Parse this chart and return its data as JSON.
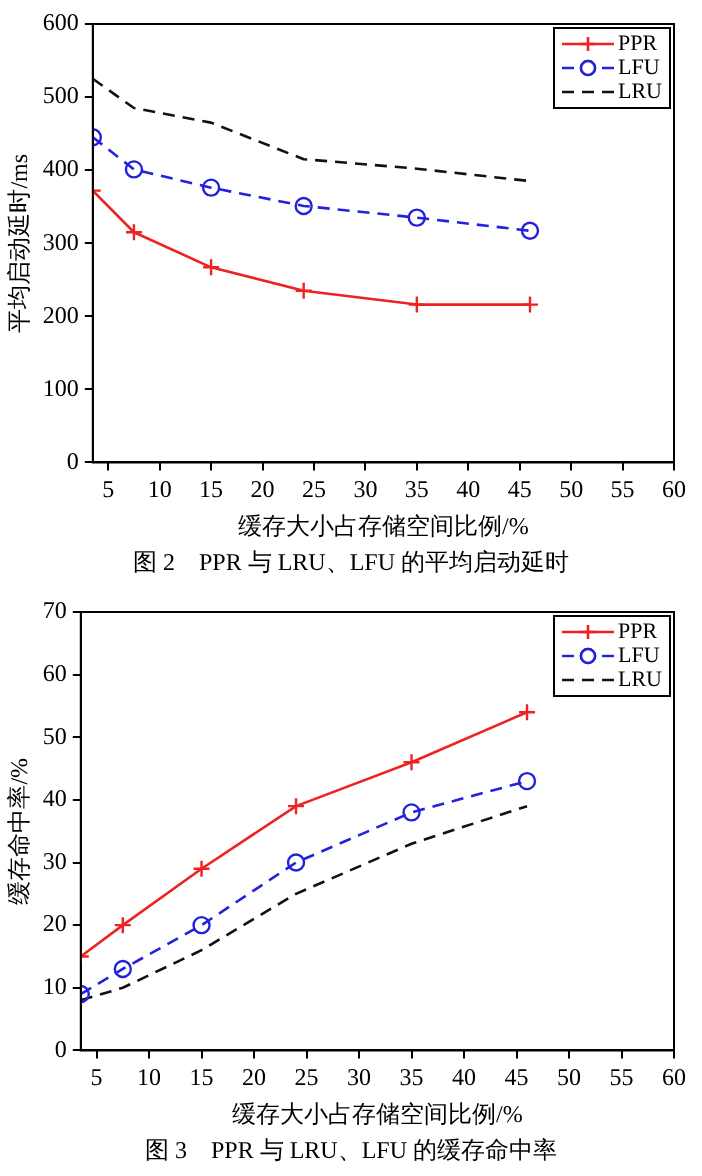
{
  "chart_data": [
    {
      "type": "line",
      "title": "图 2　PPR 与 LRU、LFU 的平均启动延时",
      "xlabel": "缓存大小占存储空间比例/%",
      "ylabel": "平均启动延时/ms",
      "x": [
        3.5,
        7.5,
        15,
        24,
        35,
        46
      ],
      "series": [
        {
          "name": "PPR",
          "color": "#ee2222",
          "marker": "cross",
          "line_style": "solid",
          "values": [
            372,
            315,
            267,
            235,
            216,
            216
          ]
        },
        {
          "name": "LFU",
          "color": "#2222dd",
          "marker": "circle",
          "line_style": "dashed",
          "values": [
            445,
            401,
            376,
            351,
            335,
            317
          ]
        },
        {
          "name": "LRU",
          "color": "#111111",
          "marker": "none",
          "line_style": "dashed",
          "values": [
            525,
            485,
            465,
            415,
            402,
            385
          ]
        }
      ],
      "xlim": [
        3.5,
        60
      ],
      "xticks": [
        5,
        10,
        15,
        20,
        25,
        30,
        35,
        40,
        45,
        50,
        55,
        60
      ],
      "ylim": [
        0,
        600
      ],
      "yticks": [
        0,
        100,
        200,
        300,
        400,
        500,
        600
      ],
      "grid": false,
      "legend": "top right"
    },
    {
      "type": "line",
      "title": "图 3　PPR 与 LRU、LFU 的缓存命中率",
      "xlabel": "缓存大小占存储空间比例/%",
      "ylabel": "缓存命中率/%",
      "x": [
        3.5,
        7.5,
        15,
        24,
        35,
        46
      ],
      "series": [
        {
          "name": "PPR",
          "color": "#ee2222",
          "marker": "cross",
          "line_style": "solid",
          "values": [
            15,
            20,
            29,
            39,
            46,
            54
          ]
        },
        {
          "name": "LFU",
          "color": "#2222dd",
          "marker": "circle",
          "line_style": "dashed",
          "values": [
            9,
            13,
            20,
            30,
            38,
            43
          ]
        },
        {
          "name": "LRU",
          "color": "#111111",
          "marker": "none",
          "line_style": "dashed",
          "values": [
            8,
            10,
            16,
            25,
            33,
            39
          ]
        }
      ],
      "xlim": [
        3.5,
        60
      ],
      "xticks": [
        5,
        10,
        15,
        20,
        25,
        30,
        35,
        40,
        45,
        50,
        55,
        60
      ],
      "ylim": [
        0,
        70
      ],
      "yticks": [
        0,
        10,
        20,
        30,
        40,
        50,
        60,
        70
      ],
      "grid": false,
      "legend": "top right"
    }
  ]
}
